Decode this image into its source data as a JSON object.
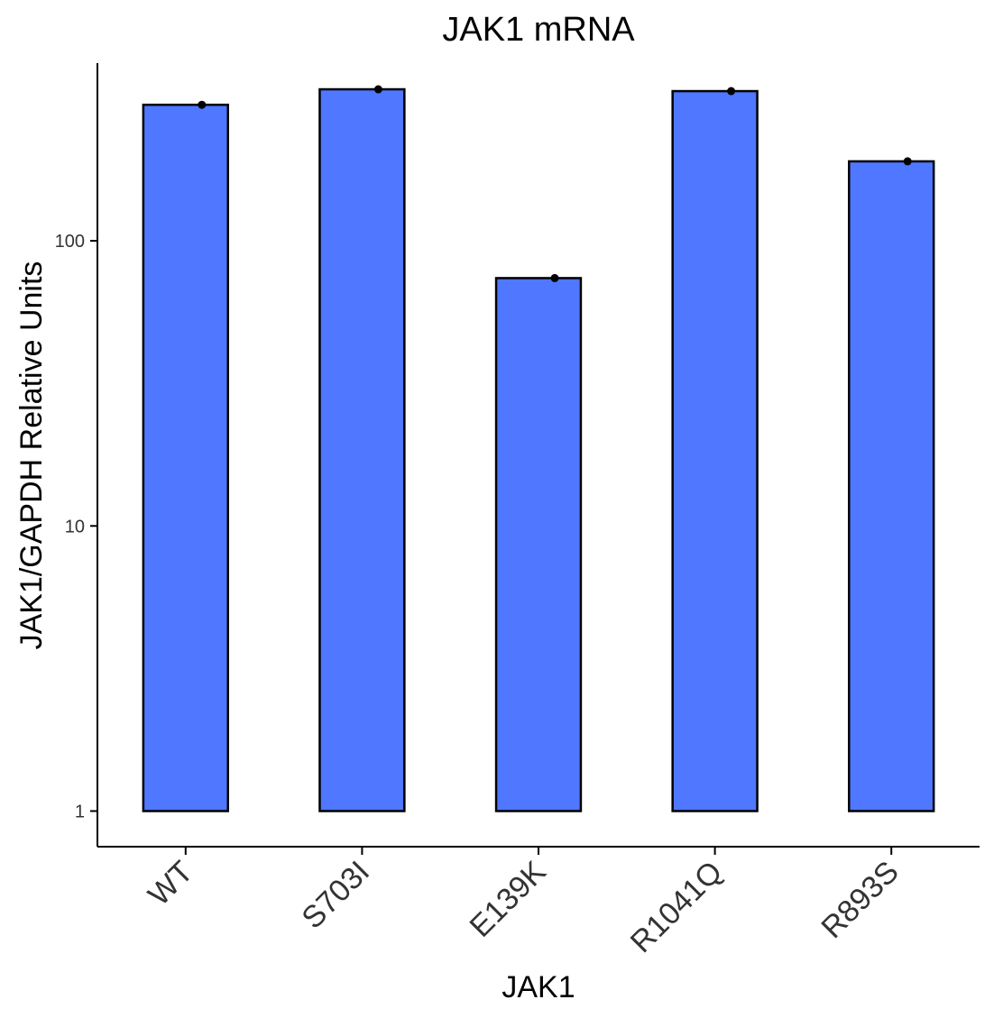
{
  "chart_data": {
    "type": "bar",
    "title": "JAK1 mRNA",
    "xlabel": "JAK1",
    "ylabel": "JAK1/GAPDH Relative Units",
    "y_scale": "log10",
    "ylim": [
      0.75,
      420
    ],
    "y_ticks": [
      1,
      10,
      100
    ],
    "y_tick_labels": [
      "1",
      "10",
      "100"
    ],
    "categories": [
      "WT",
      "S703I",
      "E139K",
      "R1041Q",
      "R893S"
    ],
    "values": [
      300,
      340,
      74,
      335,
      190
    ],
    "bar_fill": "#4f77ff",
    "bar_stroke": "#000000",
    "point_color": "#000000",
    "grid": false,
    "legend": "none"
  }
}
